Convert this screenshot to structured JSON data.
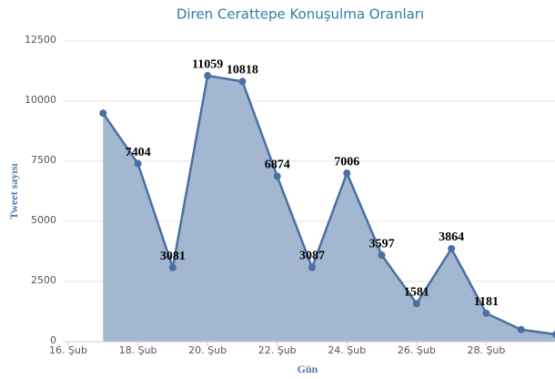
{
  "chart_data": {
    "type": "area",
    "title": "Diren Cerattepe Konuşulma Oranları",
    "x_label": "Gün",
    "y_label": "Tweet sayısı",
    "x": [
      17,
      18,
      19,
      20,
      21,
      22,
      23,
      24,
      25,
      26,
      27,
      28,
      29,
      30
    ],
    "series": [
      {
        "name": "Tweet sayısı",
        "color": "#4a6fa5",
        "fill": "#a3b7d0",
        "values": [
          9500,
          7404,
          3081,
          11059,
          10818,
          6874,
          3087,
          7006,
          3597,
          1581,
          3864,
          1181,
          500,
          300
        ],
        "value_labels": [
          null,
          "7404",
          "3081",
          "11059",
          "10818",
          "6874",
          "3087",
          "7006",
          "3597",
          "1581",
          "3864",
          "1181",
          null,
          null
        ]
      }
    ],
    "xlim": [
      16,
      30
    ],
    "xticks": [
      {
        "value": 16,
        "label": "16. Şub"
      },
      {
        "value": 18,
        "label": "18. Şub"
      },
      {
        "value": 20,
        "label": "20. Şub"
      },
      {
        "value": 22,
        "label": "22. Şub"
      },
      {
        "value": 24,
        "label": "24. Şub"
      },
      {
        "value": 26,
        "label": "26. Şub"
      },
      {
        "value": 28,
        "label": "28. Şub"
      }
    ],
    "ylim": [
      0,
      12500
    ],
    "yticks": [
      0,
      2500,
      5000,
      7500,
      10000,
      12500
    ],
    "grid": true
  }
}
